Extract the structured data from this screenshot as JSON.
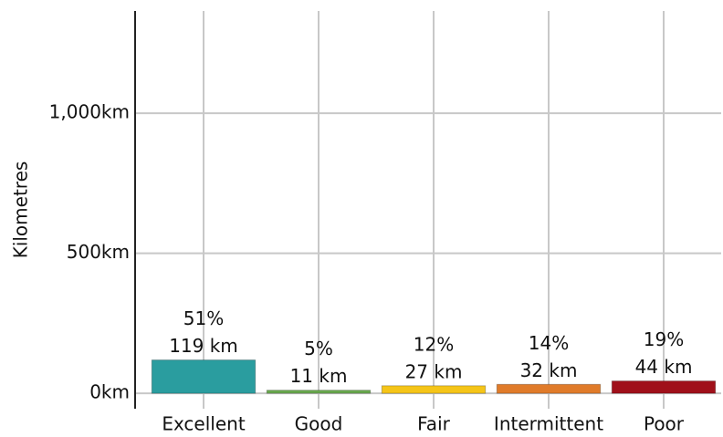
{
  "chart_data": {
    "type": "bar",
    "y_label": "Kilometres",
    "categories": [
      "Excellent",
      "Good",
      "Fair",
      "Intermittent",
      "Poor"
    ],
    "values": [
      119,
      11,
      27,
      32,
      44
    ],
    "value_labels": [
      "119 km",
      "11 km",
      "27 km",
      "32 km",
      "44 km"
    ],
    "percent_labels": [
      "51%",
      "5%",
      "12%",
      "14%",
      "19%"
    ],
    "colors": [
      "#2a9d9f",
      "#6aaa4f",
      "#f5c518",
      "#e07b2a",
      "#a0101a"
    ],
    "ylim": [
      -55,
      1365
    ],
    "yticks": [
      {
        "value": 0,
        "label": "0km"
      },
      {
        "value": 500,
        "label": "500km"
      },
      {
        "value": 1000,
        "label": "1,000km"
      }
    ],
    "grid": true
  }
}
